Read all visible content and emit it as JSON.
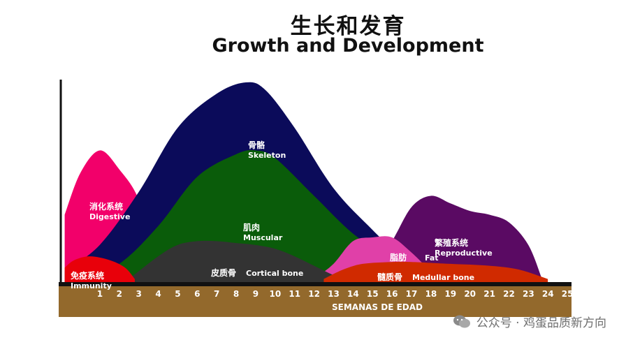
{
  "chart_data": {
    "type": "area",
    "title_zh": "生长和发育",
    "title": "Growth and Development",
    "xlabel": "SEMANAS DE EDAD",
    "ylabel": "",
    "x": [
      1,
      2,
      3,
      4,
      5,
      6,
      7,
      8,
      9,
      10,
      11,
      12,
      13,
      14,
      15,
      16,
      17,
      18,
      19,
      20,
      21,
      22,
      23,
      24,
      25
    ],
    "series": [
      {
        "name_zh": "消化系统",
        "name": "Digestive",
        "color": "#f2006a",
        "x": [
          0.2,
          1,
          2,
          3,
          4,
          4.8
        ],
        "values": [
          36,
          58,
          70,
          60,
          44,
          14
        ]
      },
      {
        "name_zh": "骨骼",
        "name": "Skeleton",
        "color": "#0b0b5a",
        "x": [
          0.2,
          2,
          4,
          6,
          8,
          9.5,
          10.5,
          12,
          14,
          16,
          18
        ],
        "values": [
          6,
          20,
          48,
          82,
          100,
          106,
          102,
          82,
          50,
          28,
          8
        ]
      },
      {
        "name_zh": "肌肉",
        "name": "Muscular",
        "color": "#0a5c0a",
        "x": [
          1,
          3,
          5,
          7,
          9,
          10,
          11,
          13,
          15,
          17,
          18
        ],
        "values": [
          2,
          10,
          30,
          56,
          68,
          70,
          66,
          46,
          26,
          12,
          2
        ]
      },
      {
        "name_zh": "繁殖系统",
        "name": "Reproductive",
        "color": "#5a0a63",
        "x": [
          16,
          17,
          18,
          19,
          20,
          21,
          22,
          23,
          24,
          24.7
        ],
        "values": [
          8,
          22,
          40,
          46,
          42,
          38,
          36,
          32,
          20,
          2
        ]
      },
      {
        "name_zh": "脂肪",
        "name": "Fat",
        "color": "#e040a8",
        "x": [
          13,
          14,
          15,
          16,
          17,
          18,
          19,
          19.5
        ],
        "values": [
          2,
          10,
          22,
          24,
          24,
          16,
          6,
          2
        ]
      },
      {
        "name_zh": "皮质骨",
        "name": "Cortical bone",
        "color": "#333333",
        "x": [
          3.5,
          5,
          6,
          7,
          8,
          9,
          10,
          11,
          12,
          13,
          14,
          14.5
        ],
        "values": [
          2,
          14,
          20,
          22,
          22,
          21,
          20,
          18,
          14,
          9,
          4,
          2
        ]
      },
      {
        "name_zh": "髓质骨",
        "name": "Medullar bone",
        "color": "#d02a00",
        "x": [
          13.5,
          14.5,
          15.5,
          17,
          18,
          20,
          22,
          23.5,
          25
        ],
        "values": [
          2,
          7,
          10,
          11,
          11,
          10,
          9,
          7,
          2
        ]
      },
      {
        "name_zh": "免疫系统",
        "name": "Immunity",
        "color": "#e8000a",
        "x": [
          0.2,
          0.7,
          1.5,
          2.5,
          3.3,
          3.8
        ],
        "values": [
          8,
          12,
          14,
          12,
          8,
          2
        ]
      }
    ],
    "xlim": [
      0,
      26
    ],
    "grid": false
  },
  "watermark": "公众号 · 鸡蛋品质新方向"
}
